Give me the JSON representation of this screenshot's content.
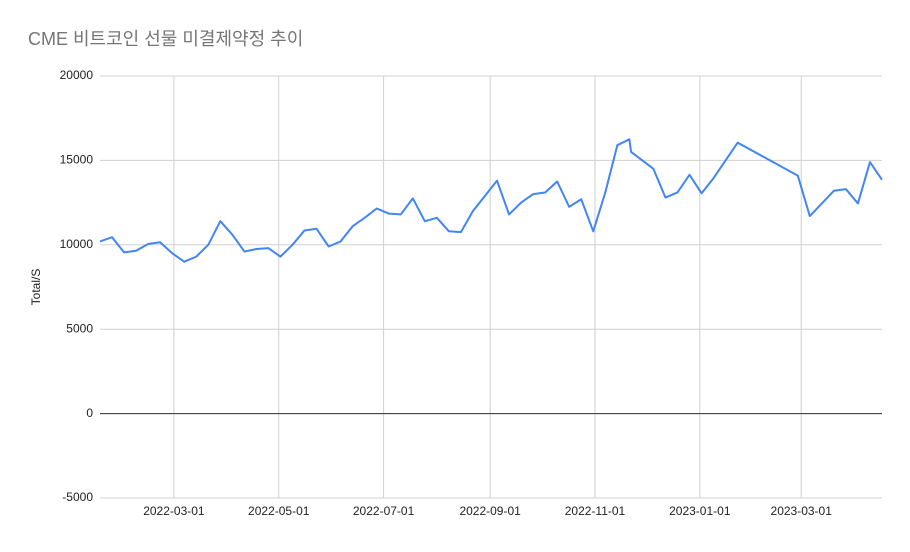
{
  "chart_data": {
    "type": "line",
    "title": "CME 비트코인 선물 미결제약정 추이",
    "y_label": "Total/S",
    "x": [
      "2022-01-17",
      "2022-01-24",
      "2022-01-31",
      "2022-02-07",
      "2022-02-14",
      "2022-02-21",
      "2022-02-28",
      "2022-03-07",
      "2022-03-14",
      "2022-03-21",
      "2022-03-28",
      "2022-04-04",
      "2022-04-11",
      "2022-04-18",
      "2022-04-25",
      "2022-05-02",
      "2022-05-09",
      "2022-05-16",
      "2022-05-23",
      "2022-05-30",
      "2022-06-06",
      "2022-06-13",
      "2022-06-20",
      "2022-06-27",
      "2022-07-04",
      "2022-07-11",
      "2022-07-18",
      "2022-07-25",
      "2022-08-01",
      "2022-08-08",
      "2022-08-15",
      "2022-08-22",
      "2022-08-29",
      "2022-09-05",
      "2022-09-12",
      "2022-09-19",
      "2022-09-26",
      "2022-10-03",
      "2022-10-10",
      "2022-10-17",
      "2022-10-24",
      "2022-10-31",
      "2022-11-07",
      "2022-11-14",
      "2022-11-21",
      "2022-11-22",
      "2022-12-05",
      "2022-12-12",
      "2022-12-19",
      "2022-12-26",
      "2023-01-02",
      "2023-01-09",
      "2023-01-23",
      "2023-02-27",
      "2023-03-06",
      "2023-03-20",
      "2023-03-27",
      "2023-04-03",
      "2023-04-10",
      "2023-04-17"
    ],
    "series": [
      {
        "name": "Total/S",
        "color": "#4285f4",
        "values": [
          10200,
          10450,
          9550,
          9650,
          10050,
          10150,
          9500,
          9000,
          9300,
          10000,
          11400,
          10600,
          9600,
          9750,
          9800,
          9300,
          10000,
          10850,
          10950,
          9900,
          10200,
          11100,
          11600,
          12150,
          11850,
          11800,
          12750,
          11400,
          11600,
          10800,
          10750,
          12000,
          12900,
          13800,
          11800,
          12500,
          13000,
          13100,
          13750,
          12250,
          12700,
          10800,
          13100,
          15900,
          16250,
          15500,
          14500,
          12800,
          13100,
          14150,
          13050,
          13950,
          16050,
          14100,
          11700,
          13200,
          13300,
          12450,
          14900,
          13850
        ]
      }
    ],
    "xlim": [
      "2022-01-17",
      "2023-04-17"
    ],
    "xticks": [
      "2022-03-01",
      "2022-05-01",
      "2022-07-01",
      "2022-09-01",
      "2022-11-01",
      "2023-01-01",
      "2023-03-01"
    ],
    "ylim": [
      -5000,
      20000
    ],
    "yticks": [
      -5000,
      0,
      5000,
      10000,
      15000,
      20000
    ],
    "grid": true
  }
}
